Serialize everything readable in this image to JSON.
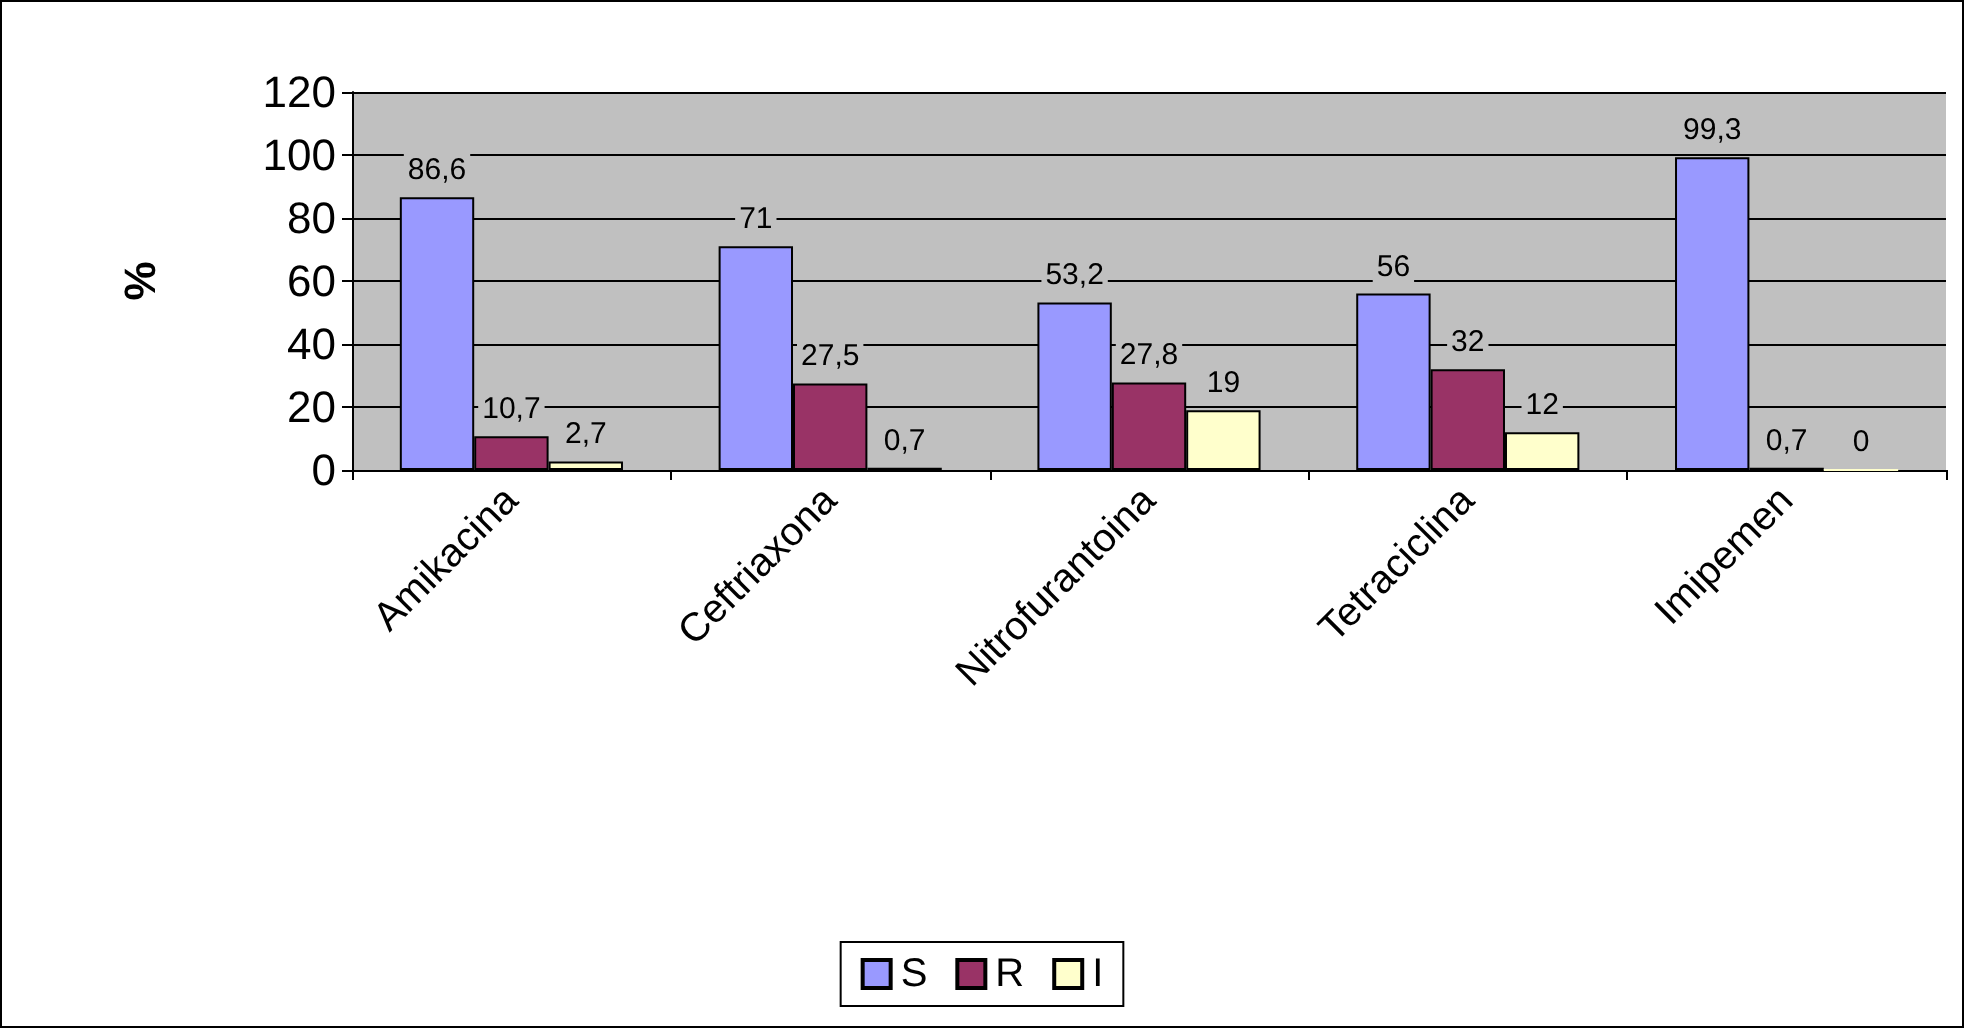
{
  "chart_data": {
    "type": "bar",
    "ylabel": "%",
    "categories": [
      "Amikacina",
      "Ceftriaxona",
      "Nitrofurantoina",
      "Tetraciclina",
      "Imipemen"
    ],
    "series": [
      {
        "name": "S",
        "color": "#9999ff",
        "values": [
          86.6,
          71,
          53.2,
          56,
          99.3
        ],
        "value_labels": [
          "86,6",
          "71",
          "53,2",
          "56",
          "99,3"
        ]
      },
      {
        "name": "R",
        "color": "#993366",
        "values": [
          10.7,
          27.5,
          27.8,
          32,
          0.7
        ],
        "value_labels": [
          "10,7",
          "27,5",
          "27,8",
          "32",
          "0,7"
        ]
      },
      {
        "name": "I",
        "color": "#ffffcc",
        "values": [
          2.7,
          0.7,
          19,
          12,
          0
        ],
        "value_labels": [
          "2,7",
          "0,7",
          "19",
          "12",
          "0"
        ]
      }
    ],
    "ylim": [
      0,
      120
    ],
    "yticks": [
      0,
      20,
      40,
      60,
      80,
      100,
      120
    ],
    "grid": "y",
    "legend": "bottom"
  }
}
